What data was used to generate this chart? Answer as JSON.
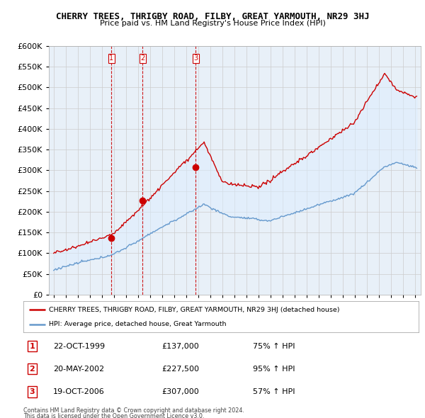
{
  "title": "CHERRY TREES, THRIGBY ROAD, FILBY, GREAT YARMOUTH, NR29 3HJ",
  "subtitle": "Price paid vs. HM Land Registry's House Price Index (HPI)",
  "legend_line1": "CHERRY TREES, THRIGBY ROAD, FILBY, GREAT YARMOUTH, NR29 3HJ (detached house)",
  "legend_line2": "HPI: Average price, detached house, Great Yarmouth",
  "footer1": "Contains HM Land Registry data © Crown copyright and database right 2024.",
  "footer2": "This data is licensed under the Open Government Licence v3.0.",
  "transactions": [
    {
      "num": 1,
      "date": "22-OCT-1999",
      "price": "£137,000",
      "hpi": "75% ↑ HPI",
      "year": 1999.8
    },
    {
      "num": 2,
      "date": "20-MAY-2002",
      "price": "£227,500",
      "hpi": "95% ↑ HPI",
      "year": 2002.38
    },
    {
      "num": 3,
      "date": "19-OCT-2006",
      "price": "£307,000",
      "hpi": "57% ↑ HPI",
      "year": 2006.8
    }
  ],
  "transaction_values": [
    137000,
    227500,
    307000
  ],
  "red_color": "#cc0000",
  "blue_color": "#6699cc",
  "fill_color": "#ddeeff",
  "marker_color": "#cc0000",
  "vline_color": "#cc0000",
  "grid_color": "#cccccc",
  "bg_color": "#ffffff",
  "ylim": [
    0,
    600000
  ],
  "yticks": [
    0,
    50000,
    100000,
    150000,
    200000,
    250000,
    300000,
    350000,
    400000,
    450000,
    500000,
    550000,
    600000
  ],
  "xlim_start": 1994.6,
  "xlim_end": 2025.5
}
